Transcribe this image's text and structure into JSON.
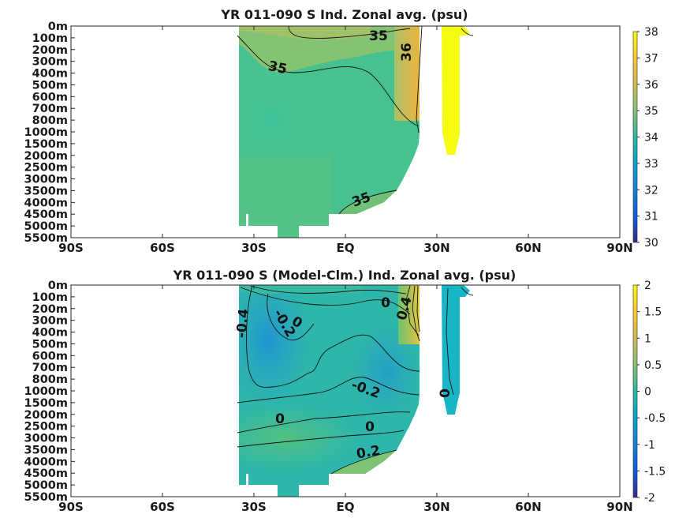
{
  "colors": {
    "axis": "#262626",
    "parula": [
      "#352a87",
      "#0f5cdd",
      "#1481d6",
      "#06a4ca",
      "#2eb7a4",
      "#87bf77",
      "#d1bb59",
      "#fec832",
      "#f9fb0e"
    ],
    "missing": "#ffffff"
  },
  "chart_data": [
    {
      "type": "heatmap",
      "title": "YR 011-090 S Ind. Zonal avg. (psu)",
      "x_ticks": [
        "90S",
        "60S",
        "30S",
        "EQ",
        "30N",
        "60N",
        "90N"
      ],
      "x_values": [
        -90,
        -60,
        -30,
        0,
        30,
        60,
        90
      ],
      "xlim": [
        -90,
        90
      ],
      "y_ticks": [
        "0m",
        "100m",
        "200m",
        "300m",
        "400m",
        "500m",
        "600m",
        "700m",
        "800m",
        "1000m",
        "1500m",
        "2000m",
        "2500m",
        "3000m",
        "3500m",
        "4000m",
        "4500m",
        "5000m",
        "5500m"
      ],
      "colorbar": {
        "min": 30,
        "max": 38,
        "ticks": [
          "30",
          "31",
          "32",
          "33",
          "34",
          "35",
          "36",
          "37",
          "38"
        ]
      },
      "contour_labels": [
        "35",
        "35",
        "36",
        "35"
      ],
      "grid": false,
      "legend": "colorbar-right"
    },
    {
      "type": "heatmap",
      "title": "YR 011-090 S (Model-Clm.) Ind. Zonal avg. (psu)",
      "x_ticks": [
        "90S",
        "60S",
        "30S",
        "EQ",
        "30N",
        "60N",
        "90N"
      ],
      "x_values": [
        -90,
        -60,
        -30,
        0,
        30,
        60,
        90
      ],
      "xlim": [
        -90,
        90
      ],
      "y_ticks": [
        "0m",
        "100m",
        "200m",
        "300m",
        "400m",
        "500m",
        "600m",
        "700m",
        "800m",
        "1000m",
        "1500m",
        "2000m",
        "2500m",
        "3000m",
        "3500m",
        "4000m",
        "4500m",
        "5000m",
        "5500m"
      ],
      "colorbar": {
        "min": -2,
        "max": 2,
        "ticks": [
          "-2",
          "-1.5",
          "-1",
          "-0.5",
          "0",
          "0.5",
          "1",
          "1.5",
          "2"
        ]
      },
      "contour_labels": [
        "-0.4",
        "-0.2",
        "0",
        "0",
        "0.4",
        "-0.2",
        "0",
        "0",
        "0",
        "0.2"
      ],
      "grid": false,
      "legend": "colorbar-right"
    }
  ]
}
